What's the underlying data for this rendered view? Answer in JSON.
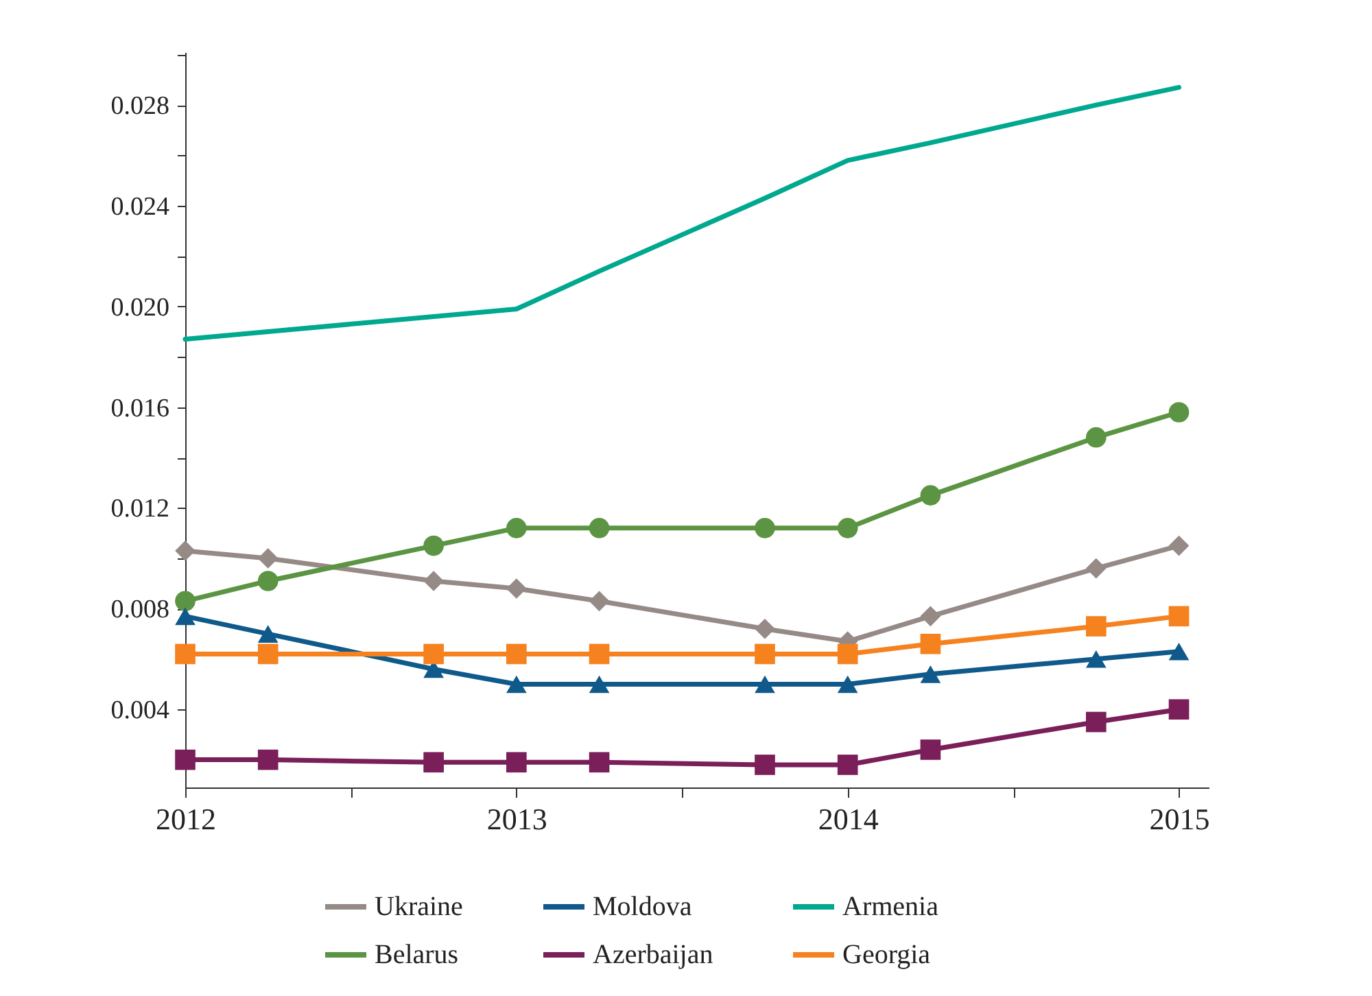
{
  "chart_data": {
    "type": "line",
    "x": [
      2012,
      2012.25,
      2012.75,
      2013,
      2013.25,
      2013.75,
      2014,
      2014.25,
      2014.75,
      2015
    ],
    "series": [
      {
        "name": "Ukraine",
        "color": "#958a86",
        "marker": "diamond",
        "values": [
          0.0103,
          0.01,
          0.0091,
          0.0088,
          0.0083,
          0.0072,
          0.0067,
          0.0077,
          0.0096,
          0.0105
        ]
      },
      {
        "name": "Belarus",
        "color": "#5b9442",
        "marker": "circle",
        "values": [
          0.0083,
          0.0091,
          0.0105,
          0.0112,
          0.0112,
          0.0112,
          0.0112,
          0.0125,
          0.0148,
          0.0158
        ]
      },
      {
        "name": "Moldova",
        "color": "#0f5a8b",
        "marker": "triangle",
        "values": [
          0.0077,
          0.007,
          0.0056,
          0.005,
          0.005,
          0.005,
          0.005,
          0.0054,
          0.006,
          0.0063
        ]
      },
      {
        "name": "Azerbaijan",
        "color": "#7a1f5a",
        "marker": "square",
        "values": [
          0.002,
          0.002,
          0.0019,
          0.0019,
          0.0019,
          0.0018,
          0.0018,
          0.0024,
          0.0035,
          0.004
        ]
      },
      {
        "name": "Armenia",
        "color": "#00a88f",
        "marker": "none",
        "values": [
          0.0187,
          0.019,
          0.0196,
          0.0199,
          0.0214,
          0.0243,
          0.0258,
          0.0265,
          0.028,
          0.0287
        ]
      },
      {
        "name": "Georgia",
        "color": "#f5821f",
        "marker": "square",
        "values": [
          0.0062,
          0.0062,
          0.0062,
          0.0062,
          0.0062,
          0.0062,
          0.0062,
          0.0066,
          0.0073,
          0.0077
        ]
      }
    ],
    "xlim": [
      2012,
      2015.09
    ],
    "xticks": [
      2012,
      {
        "value": 2012.5,
        "label": null
      },
      2013,
      {
        "value": 2013.5,
        "label": null
      },
      2014,
      {
        "value": 2014.5,
        "label": null
      },
      2015
    ],
    "ylim": [
      0.0009,
      0.0301
    ],
    "yticks": [
      {
        "value": 0.002,
        "label": null
      },
      0.004,
      {
        "value": 0.006,
        "label": null
      },
      0.008,
      {
        "value": 0.01,
        "label": null
      },
      0.012,
      {
        "value": 0.014,
        "label": null
      },
      0.016,
      {
        "value": 0.018,
        "label": null
      },
      {
        "value": 0.02,
        "label": "0.020"
      },
      {
        "value": 0.022,
        "label": null
      },
      0.024,
      {
        "value": 0.026,
        "label": null
      },
      0.028,
      {
        "value": 0.03,
        "label": null
      }
    ],
    "grid": false,
    "legend": "bottom",
    "line_style": "solid"
  }
}
